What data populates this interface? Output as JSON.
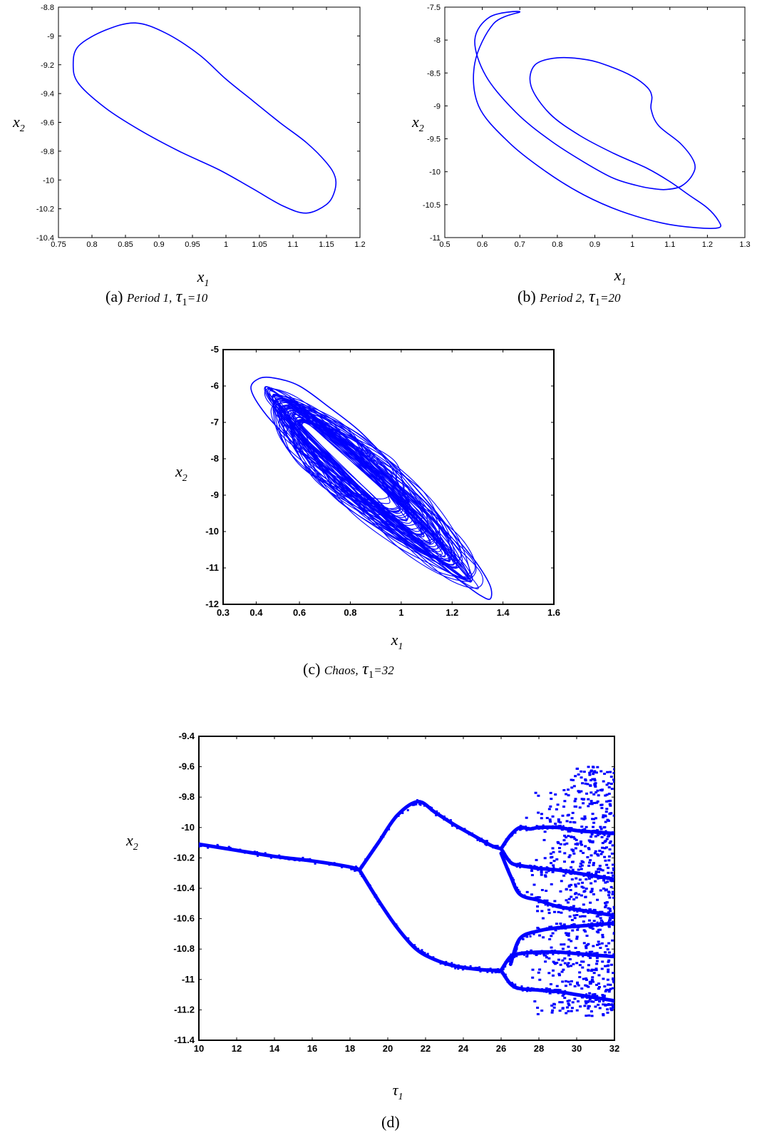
{
  "colors": {
    "trace": "#0000ff",
    "axes": "#000000",
    "background": "#ffffff"
  },
  "captions": {
    "a": {
      "letter": "(a)",
      "label": "Period 1,",
      "param": "τ",
      "sub": "1",
      "eq": "=10"
    },
    "b": {
      "letter": "(b)",
      "label": "Period 2,",
      "param": "τ",
      "sub": "1",
      "eq": "=20"
    },
    "c": {
      "letter": "(c)",
      "label": "Chaos,",
      "param": "τ",
      "sub": "1",
      "eq": "=32"
    },
    "d": {
      "letter": "(d)"
    }
  },
  "chart_data": [
    {
      "id": "a",
      "type": "line",
      "kind": "phase-portrait",
      "xlabel": "x",
      "xlabel_sub": "1",
      "ylabel": "x",
      "ylabel_sub": "2",
      "xlim": [
        0.75,
        1.2
      ],
      "ylim": [
        -10.4,
        -8.8
      ],
      "xticks": [
        "0.75",
        "0.8",
        "0.85",
        "0.9",
        "0.95",
        "1",
        "1.05",
        "1.1",
        "1.15",
        "1.2"
      ],
      "yticks": [
        "-8.8",
        "-9",
        "-9.2",
        "-9.4",
        "-9.6",
        "-9.8",
        "-10",
        "-10.2",
        "-10.4"
      ],
      "series": [
        {
          "closed": true,
          "x": [
            0.865,
            0.82,
            0.78,
            0.772,
            0.78,
            0.82,
            0.87,
            0.93,
            0.99,
            1.04,
            1.085,
            1.12,
            1.15,
            1.162,
            1.163,
            1.15,
            1.12,
            1.08,
            1.04,
            1.0,
            0.96,
            0.91
          ],
          "y": [
            -8.91,
            -8.96,
            -9.07,
            -9.2,
            -9.33,
            -9.5,
            -9.65,
            -9.8,
            -9.93,
            -10.06,
            -10.18,
            -10.23,
            -10.17,
            -10.08,
            -9.98,
            -9.88,
            -9.74,
            -9.6,
            -9.45,
            -9.3,
            -9.13,
            -8.98
          ]
        }
      ]
    },
    {
      "id": "b",
      "type": "line",
      "kind": "phase-portrait",
      "xlabel": "x",
      "xlabel_sub": "1",
      "ylabel": "x",
      "ylabel_sub": "2",
      "xlim": [
        0.5,
        1.3
      ],
      "ylim": [
        -11,
        -7.5
      ],
      "xticks": [
        "0.5",
        "0.6",
        "0.7",
        "0.8",
        "0.9",
        "1",
        "1.1",
        "1.2",
        "1.3"
      ],
      "yticks": [
        "-7.5",
        "-8",
        "-8.5",
        "-9",
        "-9.5",
        "-10",
        "-10.5",
        "-11"
      ],
      "series": [
        {
          "closed": true,
          "x": [
            0.7,
            0.62,
            0.58,
            0.61,
            0.69,
            0.78,
            0.87,
            0.95,
            1.02,
            1.06,
            1.09,
            1.13,
            1.16,
            1.165,
            1.13,
            1.07,
            1.05,
            1.052,
            1.04,
            1.0,
            0.94,
            0.88,
            0.8,
            0.74,
            0.73,
            0.78,
            0.86,
            0.95,
            1.04,
            1.1,
            1.15,
            1.2,
            1.23,
            1.23,
            1.17,
            1.08,
            0.97,
            0.87,
            0.77,
            0.67,
            0.59,
            0.58,
            0.63
          ],
          "y": [
            -7.57,
            -7.65,
            -8.0,
            -8.55,
            -9.1,
            -9.52,
            -9.85,
            -10.1,
            -10.22,
            -10.26,
            -10.27,
            -10.22,
            -10.05,
            -9.86,
            -9.58,
            -9.3,
            -9.05,
            -8.86,
            -8.72,
            -8.55,
            -8.4,
            -8.3,
            -8.27,
            -8.38,
            -8.7,
            -9.12,
            -9.45,
            -9.72,
            -9.95,
            -10.15,
            -10.35,
            -10.55,
            -10.75,
            -10.85,
            -10.85,
            -10.78,
            -10.6,
            -10.35,
            -10.0,
            -9.55,
            -9.0,
            -8.35,
            -7.75
          ]
        }
      ]
    },
    {
      "id": "c",
      "type": "line",
      "kind": "chaotic-attractor",
      "xlabel": "x",
      "xlabel_sub": "1",
      "ylabel": "x",
      "ylabel_sub": "2",
      "xlim": [
        0.3,
        1.6
      ],
      "ylim": [
        -12,
        -5
      ],
      "xticks": [
        "0.3",
        "0.4",
        "0.6",
        "0.8",
        "1",
        "1.2",
        "1.4",
        "1.6"
      ],
      "yticks": [
        "-5",
        "-6",
        "-7",
        "-8",
        "-9",
        "-10",
        "-11",
        "-12"
      ],
      "series": [
        {
          "trajectory": "aperiodic loops filling the band from (0.43, -5.8) to (1.35, -11.8)",
          "envelope_x": [
            0.44,
            0.41,
            0.47,
            0.58,
            0.7,
            0.82,
            0.94,
            1.05,
            1.15,
            1.24,
            1.31,
            1.35,
            1.35,
            1.3,
            1.22,
            1.13,
            1.03,
            0.93,
            0.83,
            0.72,
            0.6,
            0.5
          ],
          "envelope_y": [
            -5.8,
            -6.1,
            -6.8,
            -7.6,
            -8.4,
            -9.1,
            -9.8,
            -10.4,
            -10.9,
            -11.4,
            -11.75,
            -11.85,
            -11.5,
            -10.9,
            -10.2,
            -9.4,
            -8.6,
            -7.9,
            -7.2,
            -6.6,
            -6.0,
            -5.78
          ]
        }
      ]
    },
    {
      "id": "d",
      "type": "scatter",
      "kind": "bifurcation-diagram",
      "xlabel": "τ",
      "xlabel_sub": "1",
      "ylabel": "x",
      "ylabel_sub": "2",
      "xlim": [
        10,
        32
      ],
      "ylim": [
        -11.4,
        -9.4
      ],
      "xticks": [
        "10",
        "12",
        "14",
        "16",
        "18",
        "20",
        "22",
        "24",
        "26",
        "28",
        "30",
        "32"
      ],
      "yticks": [
        "-9.4",
        "-9.6",
        "-9.8",
        "-10",
        "-10.2",
        "-10.4",
        "-10.6",
        "-10.8",
        "-11",
        "-11.2",
        "-11.4"
      ],
      "branches": [
        {
          "x": [
            10,
            12,
            14,
            16,
            18,
            18.5
          ],
          "y": [
            -10.11,
            -10.15,
            -10.19,
            -10.22,
            -10.26,
            -10.28
          ]
        },
        {
          "x": [
            18.5,
            19.5,
            20.5,
            21.6,
            22.5,
            23.5,
            24.5,
            25.5,
            26
          ],
          "y": [
            -10.28,
            -10.1,
            -9.92,
            -9.83,
            -9.9,
            -9.98,
            -10.05,
            -10.12,
            -10.14
          ]
        },
        {
          "x": [
            18.5,
            19.5,
            20.5,
            21.5,
            22.5,
            23.5,
            24.5,
            25.5,
            26
          ],
          "y": [
            -10.28,
            -10.48,
            -10.66,
            -10.8,
            -10.87,
            -10.91,
            -10.93,
            -10.94,
            -10.94
          ]
        },
        {
          "x": [
            26,
            26.5,
            27,
            27.5,
            28,
            29,
            30,
            31,
            32
          ],
          "y": [
            -10.14,
            -10.05,
            -10.0,
            -10.01,
            -10.0,
            -10.0,
            -10.02,
            -10.03,
            -10.04
          ]
        },
        {
          "x": [
            26,
            26.5,
            27,
            27.5,
            28,
            29,
            30,
            31,
            32
          ],
          "y": [
            -10.14,
            -10.23,
            -10.25,
            -10.26,
            -10.27,
            -10.28,
            -10.3,
            -10.32,
            -10.34
          ]
        },
        {
          "x": [
            26,
            26.5,
            27,
            28,
            29,
            30,
            31,
            32
          ],
          "y": [
            -10.17,
            -10.32,
            -10.44,
            -10.48,
            -10.52,
            -10.54,
            -10.56,
            -10.58
          ]
        },
        {
          "x": [
            26,
            26.5,
            27,
            28,
            29,
            30,
            31,
            32
          ],
          "y": [
            -10.94,
            -10.85,
            -10.83,
            -10.82,
            -10.82,
            -10.83,
            -10.84,
            -10.85
          ]
        },
        {
          "x": [
            26,
            26.5,
            27,
            28,
            29,
            30,
            31,
            32
          ],
          "y": [
            -10.94,
            -11.03,
            -11.06,
            -11.07,
            -11.08,
            -11.1,
            -11.12,
            -11.14
          ]
        },
        {
          "x": [
            26.5,
            27,
            28,
            29,
            30,
            31,
            32
          ],
          "y": [
            -10.9,
            -10.73,
            -10.68,
            -10.66,
            -10.65,
            -10.64,
            -10.63
          ]
        }
      ],
      "scatter_region": {
        "xrange": [
          26,
          32
        ],
        "yrange": [
          -11.24,
          -9.6
        ]
      }
    }
  ]
}
